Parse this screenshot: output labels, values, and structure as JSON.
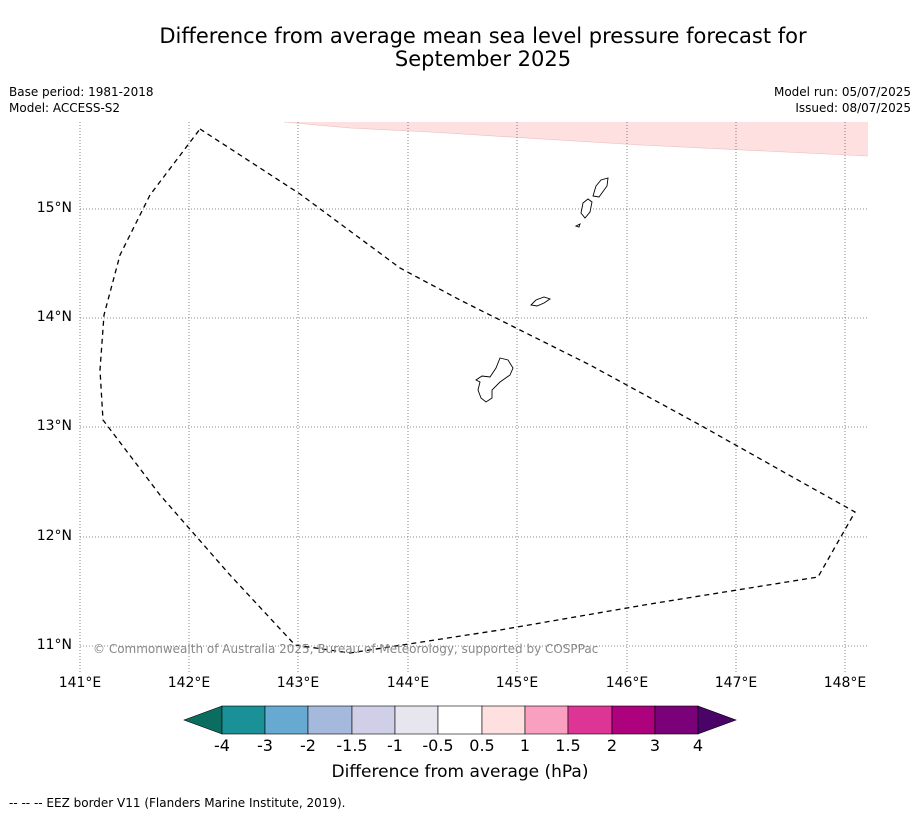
{
  "title_line1": "Difference from average mean sea level pressure forecast for",
  "title_line2": "September 2025",
  "meta": {
    "base_period": "Base period: 1981-2018",
    "model": "Model: ACCESS-S2",
    "model_run": "Model run: 05/07/2025",
    "issued": "Issued: 08/07/2025"
  },
  "map": {
    "lon_ticks": [
      "141°E",
      "142°E",
      "143°E",
      "144°E",
      "145°E",
      "146°E",
      "147°E",
      "148°E"
    ],
    "lat_ticks": [
      "15°N",
      "14°N",
      "13°N",
      "12°N",
      "11°N"
    ],
    "credit": "© Commonwealth of Australia 2025, Bureau of Meteorology, supported by COSPPac",
    "shade_color": "#fde0df",
    "grid_style": "dotted"
  },
  "colorbar": {
    "labels": [
      "-4",
      "-3",
      "-2",
      "-1.5",
      "-1",
      "-0.5",
      "0.5",
      "1",
      "1.5",
      "2",
      "3",
      "4"
    ],
    "colors": [
      "#0b6d5f",
      "#1a9196",
      "#66a9d1",
      "#a4b9db",
      "#cfd0e7",
      "#e7e6ee",
      "#ffffff",
      "#fde0df",
      "#f99fbf",
      "#dc3596",
      "#ad017e",
      "#7a0177",
      "#4a0467"
    ],
    "title": "Difference from average (hPa)"
  },
  "footer": "--  --  -- EEZ border V11 (Flanders Marine Institute, 2019)."
}
